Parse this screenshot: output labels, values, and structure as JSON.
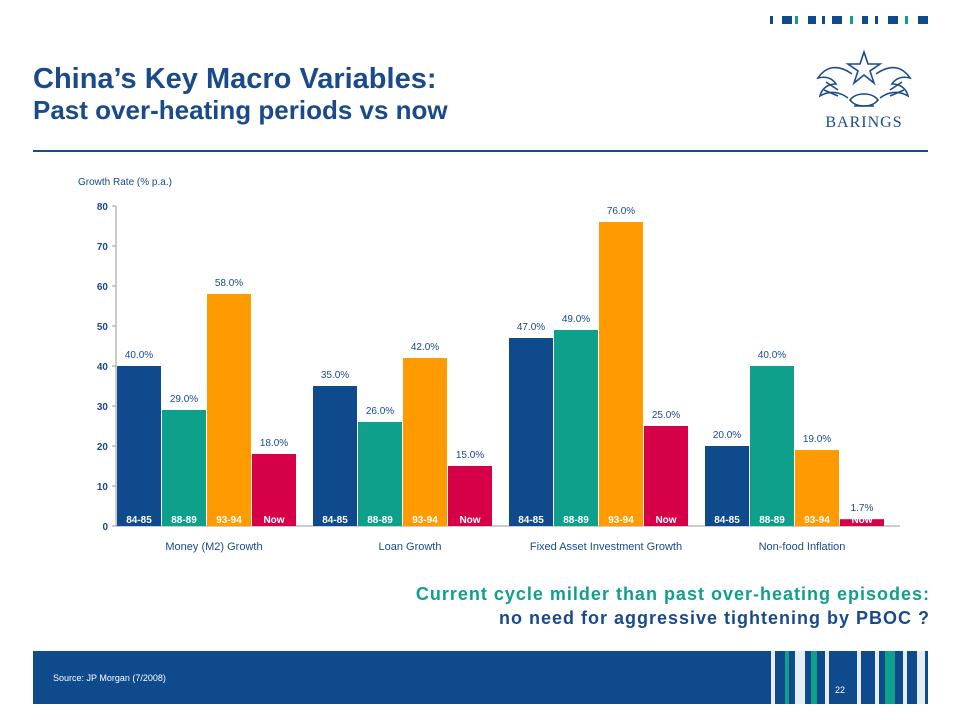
{
  "title": {
    "main": "China’s Key Macro Variables:",
    "sub": "Past over-heating periods vs now"
  },
  "logo": {
    "text": "BARINGS",
    "icon": "barings-eagle-crest-icon"
  },
  "message": {
    "line1": "Current cycle milder than past over-heating episodes:",
    "line2": "no need for aggressive tightening by PBOC ?"
  },
  "footer": {
    "source": "Source: JP Morgan (7/2008)",
    "page_number": "22"
  },
  "colors": {
    "navy": "#0e4a8c",
    "teal": "#0fa08c",
    "orange": "#ff9a00",
    "crimson": "#d60048",
    "title_blue": "#1a4a8a"
  },
  "chart_data": {
    "type": "bar",
    "ylabel": "Growth Rate (% p.a.)",
    "ylim": [
      0,
      80
    ],
    "yticks": [
      0,
      10,
      20,
      30,
      40,
      50,
      60,
      70,
      80
    ],
    "grid": false,
    "legend": "none",
    "groups": [
      {
        "category": "Money (M2) Growth",
        "bars": [
          {
            "period": "84-85",
            "value": 40,
            "label": "40.0%"
          },
          {
            "period": "88-89",
            "value": 29,
            "label": "29.0%"
          },
          {
            "period": "93-94",
            "value": 58,
            "label": "58.0%"
          },
          {
            "period": "Now",
            "value": 18,
            "label": "18.0%"
          }
        ]
      },
      {
        "category": "Loan Growth",
        "bars": [
          {
            "period": "84-85",
            "value": 35,
            "label": "35.0%"
          },
          {
            "period": "88-89",
            "value": 26,
            "label": "26.0%"
          },
          {
            "period": "93-94",
            "value": 42,
            "label": "42.0%"
          },
          {
            "period": "Now",
            "value": 15,
            "label": "15.0%"
          }
        ]
      },
      {
        "category": "Fixed Asset Investment Growth",
        "bars": [
          {
            "period": "84-85",
            "value": 47,
            "label": "47.0%"
          },
          {
            "period": "88-89",
            "value": 49,
            "label": "49.0%"
          },
          {
            "period": "93-94",
            "value": 76,
            "label": "76.0%"
          },
          {
            "period": "Now",
            "value": 25,
            "label": "25.0%"
          }
        ]
      },
      {
        "category": "Non-food Inflation",
        "bars": [
          {
            "period": "84-85",
            "value": 20,
            "label": "20.0%"
          },
          {
            "period": "88-89",
            "value": 40,
            "label": "40.0%"
          },
          {
            "period": "93-94",
            "value": 19,
            "label": "19.0%"
          },
          {
            "period": "Now",
            "value": 1.7,
            "label": "1.7%"
          }
        ]
      }
    ]
  }
}
